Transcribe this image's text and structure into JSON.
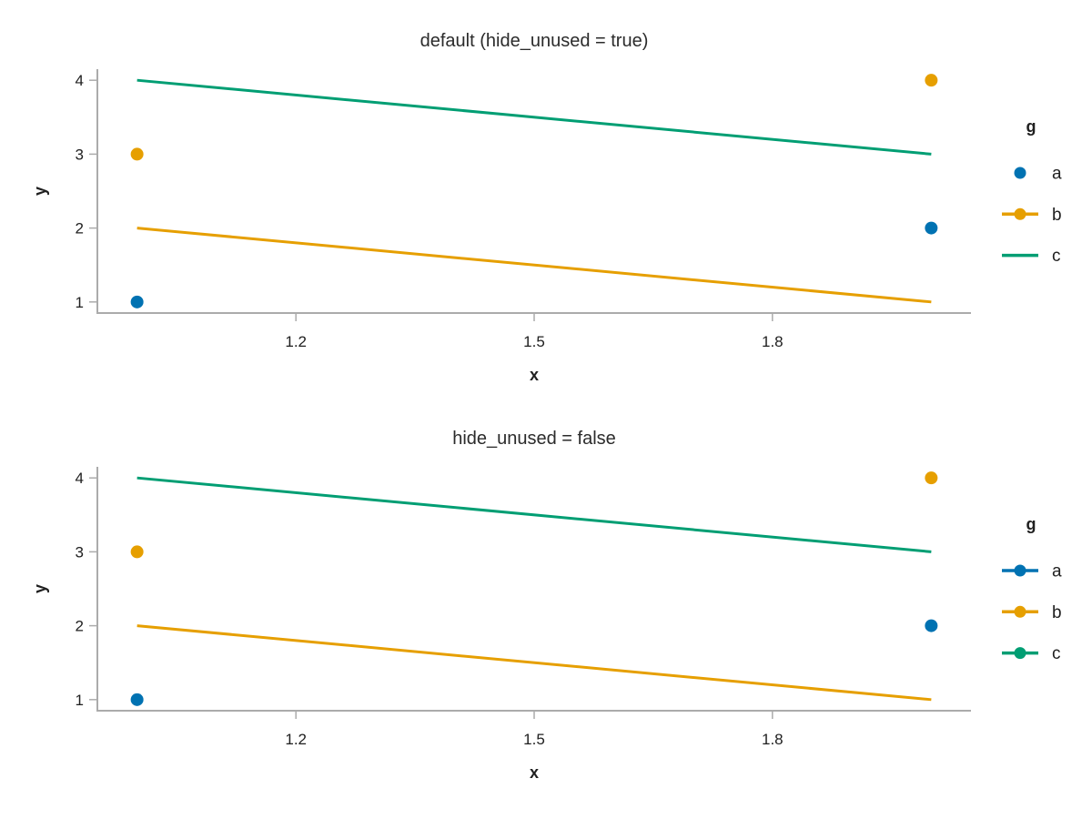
{
  "figure": {
    "background": "#ffffff",
    "text_color": "#202020",
    "spine_color": "#ababab",
    "palette": {
      "a": "#0072B2",
      "b": "#E69F00",
      "c": "#009E73"
    }
  },
  "chart_data": [
    {
      "type": "line",
      "title": "default (hide_unused = true)",
      "xlabel": "x",
      "ylabel": "y",
      "xlim": [
        0.95,
        2.05
      ],
      "ylim": [
        0.85,
        4.15
      ],
      "grid": false,
      "xtick_values": [
        1.2,
        1.5,
        1.8
      ],
      "xtick_labels": [
        "1.2",
        "1.5",
        "1.8"
      ],
      "ytick_values": [
        1,
        2,
        3,
        4
      ],
      "ytick_labels": [
        "1",
        "2",
        "3",
        "4"
      ],
      "marks": [
        {
          "series": "a",
          "kind": "scatter",
          "color": "#0072B2",
          "points": [
            [
              1,
              1
            ],
            [
              2,
              2
            ]
          ]
        },
        {
          "series": "b",
          "kind": "scatter",
          "color": "#E69F00",
          "points": [
            [
              1,
              3
            ],
            [
              2,
              4
            ]
          ]
        },
        {
          "series": "b",
          "kind": "line",
          "color": "#E69F00",
          "points": [
            [
              1,
              2
            ],
            [
              2,
              1
            ]
          ]
        },
        {
          "series": "c",
          "kind": "line",
          "color": "#009E73",
          "points": [
            [
              1,
              4
            ],
            [
              2,
              3
            ]
          ]
        }
      ],
      "legend": {
        "title": "g",
        "position": "right",
        "entries": [
          {
            "label": "a",
            "marker": "dot",
            "color": "#0072B2"
          },
          {
            "label": "b",
            "marker": "line+dot",
            "color": "#E69F00"
          },
          {
            "label": "c",
            "marker": "line",
            "color": "#009E73"
          }
        ]
      }
    },
    {
      "type": "line",
      "title": "hide_unused = false",
      "xlabel": "x",
      "ylabel": "y",
      "xlim": [
        0.95,
        2.05
      ],
      "ylim": [
        0.85,
        4.15
      ],
      "grid": false,
      "xtick_values": [
        1.2,
        1.5,
        1.8
      ],
      "xtick_labels": [
        "1.2",
        "1.5",
        "1.8"
      ],
      "ytick_values": [
        1,
        2,
        3,
        4
      ],
      "ytick_labels": [
        "1",
        "2",
        "3",
        "4"
      ],
      "marks": [
        {
          "series": "a",
          "kind": "scatter",
          "color": "#0072B2",
          "points": [
            [
              1,
              1
            ],
            [
              2,
              2
            ]
          ]
        },
        {
          "series": "b",
          "kind": "scatter",
          "color": "#E69F00",
          "points": [
            [
              1,
              3
            ],
            [
              2,
              4
            ]
          ]
        },
        {
          "series": "b",
          "kind": "line",
          "color": "#E69F00",
          "points": [
            [
              1,
              2
            ],
            [
              2,
              1
            ]
          ]
        },
        {
          "series": "c",
          "kind": "line",
          "color": "#009E73",
          "points": [
            [
              1,
              4
            ],
            [
              2,
              3
            ]
          ]
        }
      ],
      "legend": {
        "title": "g",
        "position": "right",
        "entries": [
          {
            "label": "a",
            "marker": "line+dot",
            "color": "#0072B2"
          },
          {
            "label": "b",
            "marker": "line+dot",
            "color": "#E69F00"
          },
          {
            "label": "c",
            "marker": "line+dot",
            "color": "#009E73"
          }
        ]
      }
    }
  ]
}
